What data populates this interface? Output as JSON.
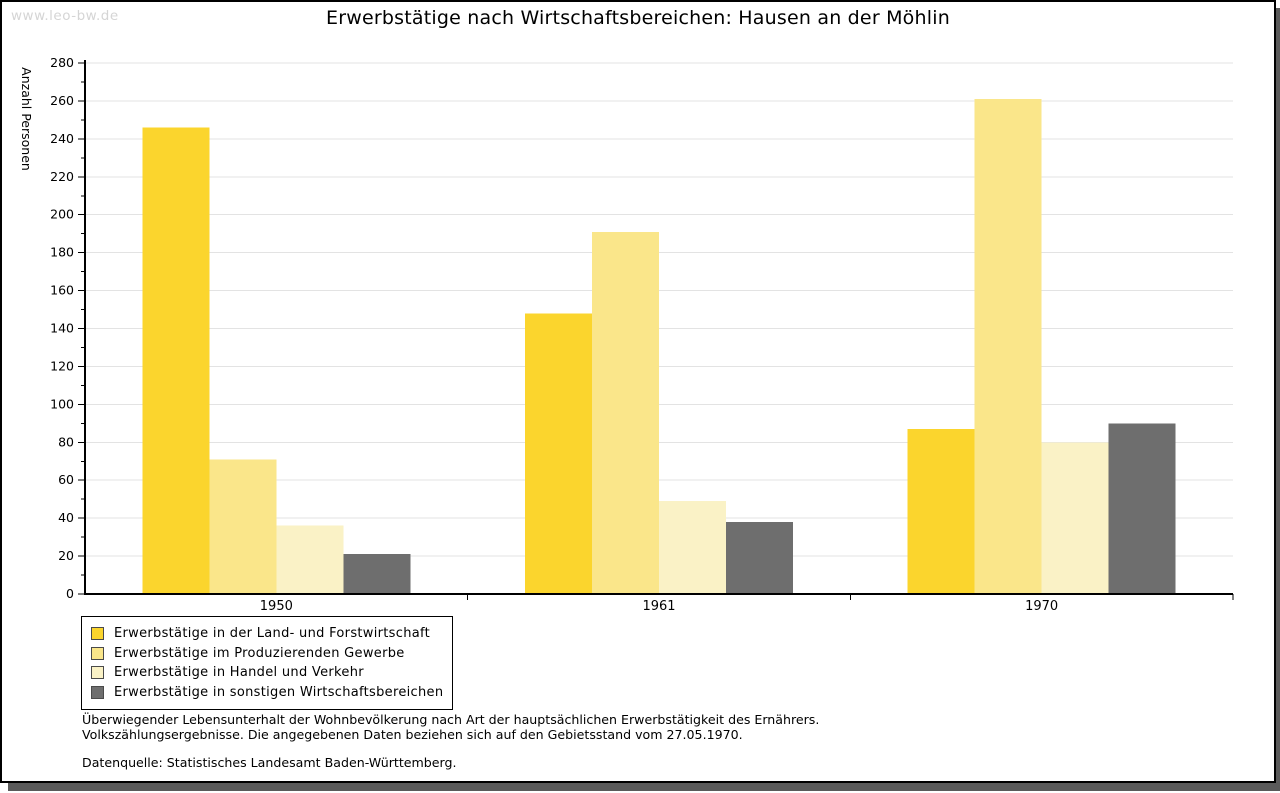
{
  "watermark": "www.leo-bw.de",
  "title": "Erwerbstätige nach Wirtschaftsbereichen: Hausen an der Möhlin",
  "chart_data": {
    "type": "bar",
    "title": "Erwerbstätige nach Wirtschaftsbereichen: Hausen an der Möhlin",
    "categories": [
      "1950",
      "1961",
      "1970"
    ],
    "series": [
      {
        "name": "Erwerbstätige in der Land- und Forstwirtschaft",
        "color": "#fbd52d",
        "values": [
          246,
          148,
          87
        ]
      },
      {
        "name": "Erwerbstätige im Produzierenden Gewerbe",
        "color": "#fae68a",
        "values": [
          71,
          191,
          261
        ]
      },
      {
        "name": "Erwerbstätige in Handel und Verkehr",
        "color": "#faf2c6",
        "values": [
          36,
          49,
          80
        ]
      },
      {
        "name": "Erwerbstätige in sonstigen Wirtschaftsbereichen",
        "color": "#6e6e6e",
        "values": [
          21,
          38,
          90
        ]
      }
    ],
    "xlabel": "",
    "ylabel": "Anzahl Personen",
    "ylim": [
      0,
      280
    ],
    "ytick_step": 20,
    "yminor_step": 10,
    "grid": true,
    "gridline_color": "#e3e3e3",
    "axis_color": "#000000",
    "legend_position": "bottom-left"
  },
  "footer": {
    "line1": "Überwiegender Lebensunterhalt der Wohnbevölkerung nach Art der hauptsächlichen Erwerbstätigkeit des Ernährers.",
    "line2": "Volkszählungsergebnisse. Die angegebenen Daten beziehen sich auf den Gebietsstand vom 27.05.1970.",
    "source": "Datenquelle: Statistisches Landesamt Baden-Württemberg."
  }
}
